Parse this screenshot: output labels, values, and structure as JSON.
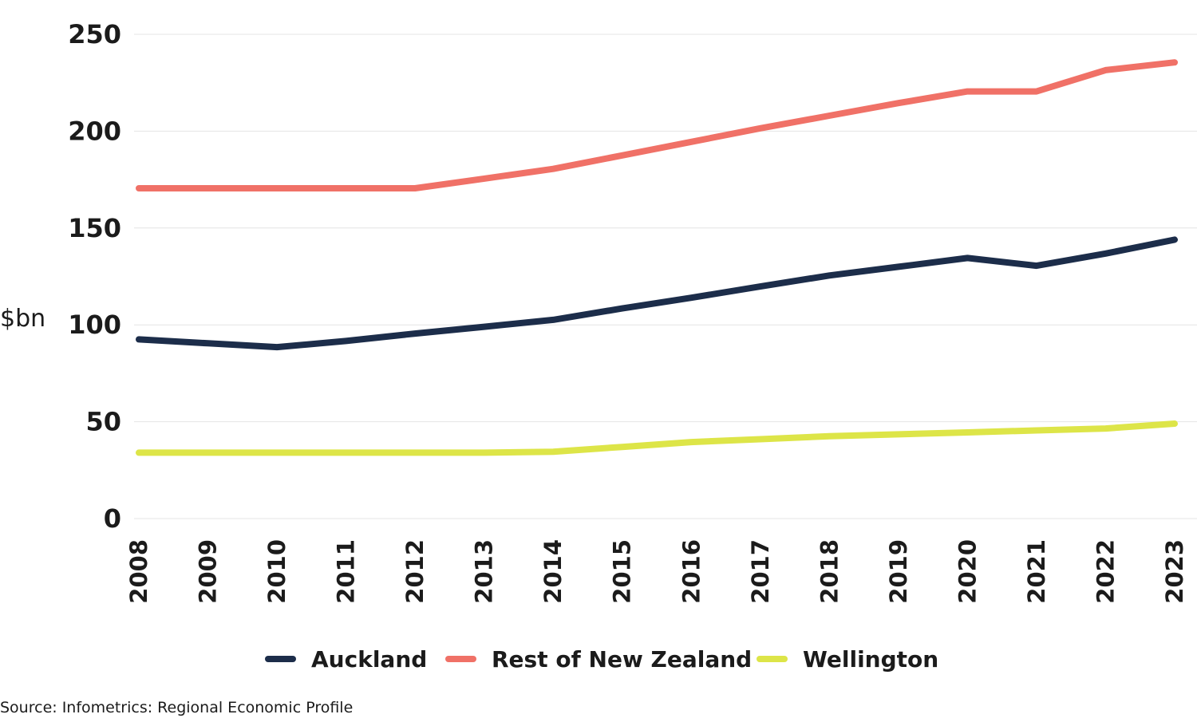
{
  "chart_data": {
    "type": "line",
    "ylabel": "$bn",
    "ylim": [
      0,
      250
    ],
    "yticks": [
      "0",
      "50",
      "100",
      "150",
      "200",
      "250"
    ],
    "x": [
      "2008",
      "2009",
      "2010",
      "2011",
      "2012",
      "2013",
      "2014",
      "2015",
      "2016",
      "2017",
      "2018",
      "2019",
      "2020",
      "2021",
      "2022",
      "2023"
    ],
    "grid": true,
    "legend_position": "bottom",
    "series": [
      {
        "name": "Auckland",
        "color": "#1c2d4a",
        "values": [
          92.5,
          90.5,
          88.5,
          91.7,
          95.5,
          99.0,
          102.6,
          108.5,
          114.0,
          119.8,
          125.5,
          130.0,
          134.5,
          130.5,
          136.8,
          144.0
        ]
      },
      {
        "name": "Rest of New Zealand",
        "color": "#f07167",
        "values": [
          170.5,
          170.5,
          170.5,
          170.5,
          170.5,
          175.5,
          180.5,
          187.5,
          194.5,
          201.5,
          208.0,
          214.5,
          220.5,
          220.5,
          231.5,
          235.5
        ]
      },
      {
        "name": "Wellington",
        "color": "#dde548",
        "values": [
          34.0,
          34.0,
          34.0,
          34.0,
          34.0,
          34.0,
          34.5,
          37.0,
          39.5,
          41.0,
          42.5,
          43.5,
          44.5,
          45.5,
          46.5,
          49.0
        ]
      }
    ]
  },
  "source": "Source: Infometrics: Regional Economic Profile"
}
